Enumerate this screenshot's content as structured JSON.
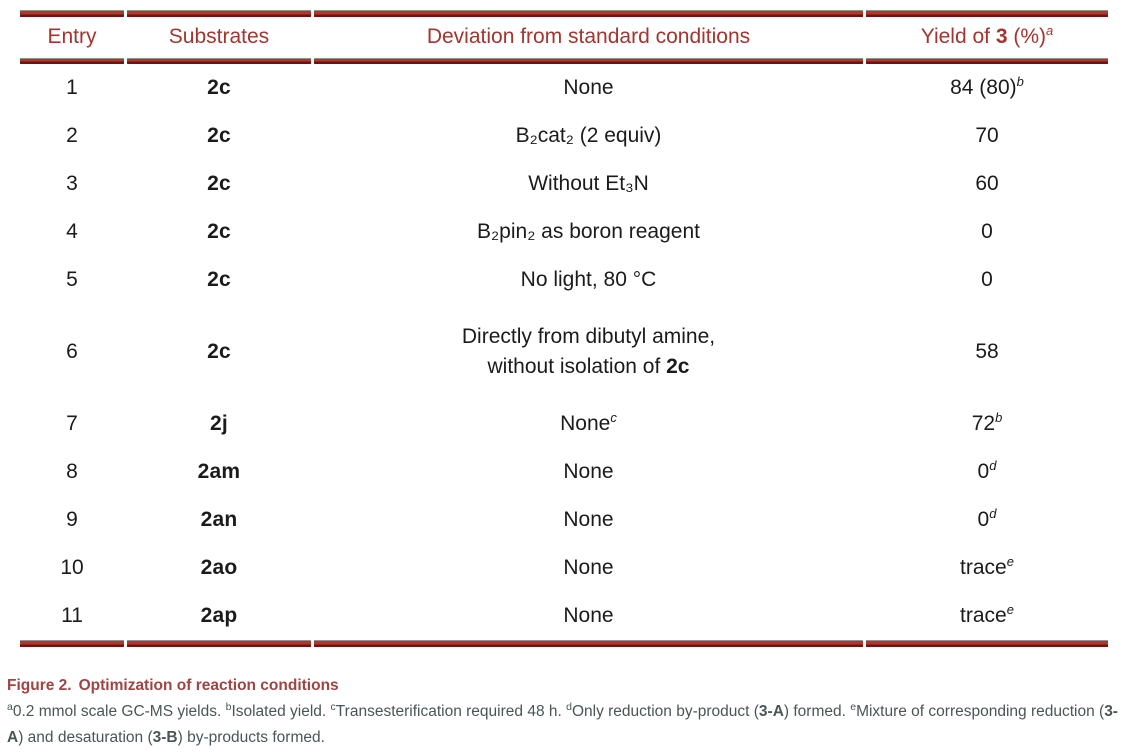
{
  "colors": {
    "header_text": "#a23530",
    "rule_red": "#a5312a",
    "rule_dark": "#6f1310",
    "rule_gray": "#919191",
    "body_text": "#1b1b1b",
    "caption_title": "#9e4543",
    "footnote_text": "#4a5556"
  },
  "table": {
    "header": {
      "entry": "Entry",
      "substrates": "Substrates",
      "deviation": "Deviation from standard conditions",
      "yield_prefix": "Yield of ",
      "yield_bold": "3",
      "yield_suffix": " (%)",
      "yield_sup": "a"
    },
    "rows": [
      {
        "entry": "1",
        "substrate": "2c",
        "deviation": "None",
        "yield": "84 (80)",
        "yield_sup": "b"
      },
      {
        "entry": "2",
        "substrate": "2c",
        "deviation": "B₂cat₂ (2 equiv)",
        "yield": "70"
      },
      {
        "entry": "3",
        "substrate": "2c",
        "deviation": "Without Et₃N",
        "yield": "60"
      },
      {
        "entry": "4",
        "substrate": "2c",
        "deviation": "B₂pin₂ as boron reagent",
        "yield": "0"
      },
      {
        "entry": "5",
        "substrate": "2c",
        "deviation": "No light, 80 °C",
        "yield": "0"
      },
      {
        "entry": "6",
        "substrate": "2c",
        "deviation_line1": "Directly from dibutyl amine,",
        "deviation_line2_prefix": "without isolation of ",
        "deviation_line2_bold": "2c",
        "yield": "58"
      },
      {
        "entry": "7",
        "substrate": "2j",
        "deviation": "None",
        "dev_sup": "c",
        "yield": "72",
        "yield_sup": "b"
      },
      {
        "entry": "8",
        "substrate": "2am",
        "deviation": "None",
        "yield": "0",
        "yield_sup": "d"
      },
      {
        "entry": "9",
        "substrate": "2an",
        "deviation": "None",
        "yield": "0",
        "yield_sup": "d"
      },
      {
        "entry": "10",
        "substrate": "2ao",
        "deviation": "None",
        "yield": "trace",
        "yield_sup": "e"
      },
      {
        "entry": "11",
        "substrate": "2ap",
        "deviation": "None",
        "yield": "trace",
        "yield_sup": "e"
      }
    ]
  },
  "caption": {
    "label": "Figure 2.",
    "title": "Optimization of reaction conditions",
    "footnote_segments": [
      {
        "sup": "a"
      },
      {
        "text": "0.2 mmol scale GC-MS yields. "
      },
      {
        "sup": "b"
      },
      {
        "text": "Isolated yield. "
      },
      {
        "sup": "c"
      },
      {
        "text": "Transesterification required 48 h. "
      },
      {
        "sup": "d"
      },
      {
        "text": "Only reduction by-product ("
      },
      {
        "bold": "3-A"
      },
      {
        "text": ") formed. "
      },
      {
        "sup": "e"
      },
      {
        "text": "Mixture of corresponding reduction ("
      },
      {
        "bold": "3-A"
      },
      {
        "text": ") and desaturation ("
      },
      {
        "bold": "3-B"
      },
      {
        "text": ") by-products formed."
      }
    ]
  }
}
